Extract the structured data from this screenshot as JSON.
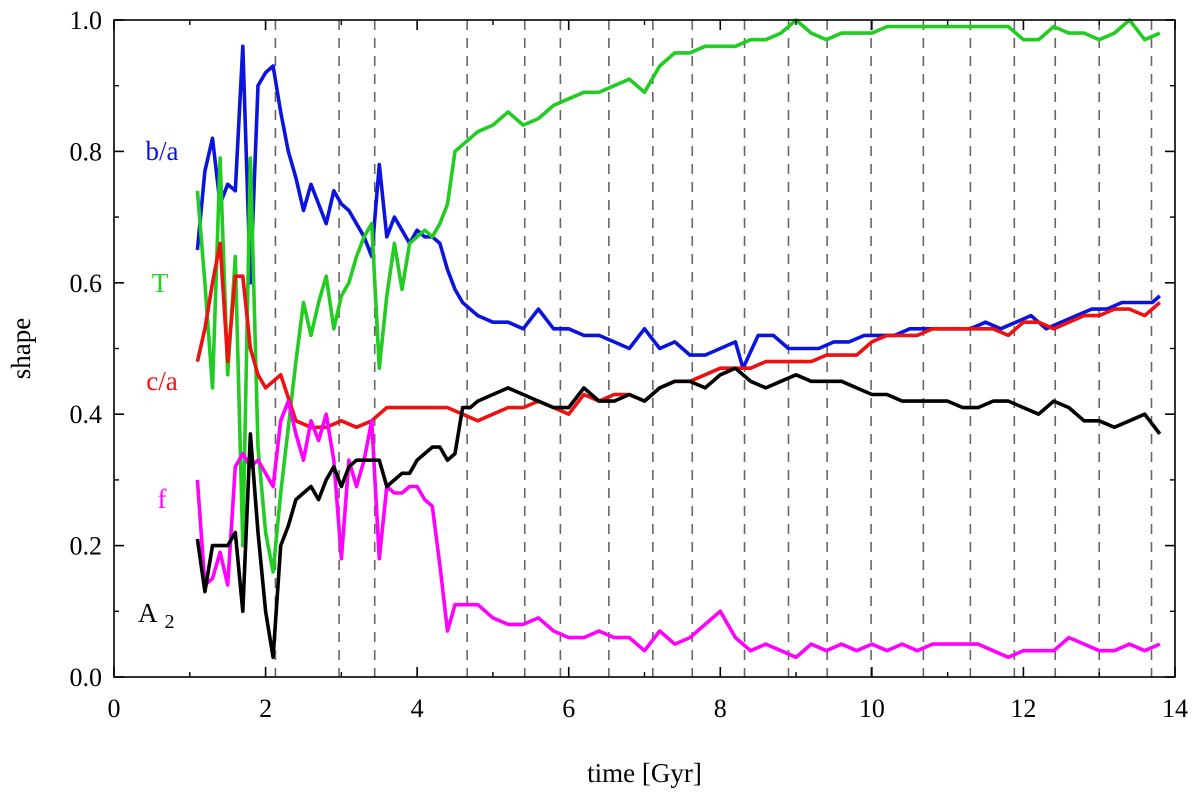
{
  "chart_data": {
    "type": "line",
    "xlabel": "time [Gyr]",
    "ylabel": "shape",
    "xlim": [
      0,
      14
    ],
    "ylim": [
      0,
      1
    ],
    "xticks": [
      0,
      2,
      4,
      6,
      8,
      10,
      12,
      14
    ],
    "xtick_labels": [
      "0",
      "2",
      "4",
      "6",
      "8",
      "10",
      "12",
      "14"
    ],
    "yticks": [
      0,
      0.2,
      0.4,
      0.6,
      0.8,
      1.0
    ],
    "ytick_labels": [
      "0.0",
      "0.2",
      "0.4",
      "0.6",
      "0.8",
      "1.0"
    ],
    "grid": false,
    "vlines": [
      2.13,
      2.97,
      3.44,
      4.66,
      5.42,
      5.89,
      6.53,
      7.11,
      7.63,
      8.32,
      8.9,
      9.41,
      9.99,
      10.68,
      11.3,
      11.88,
      12.42,
      13.0,
      13.69
    ],
    "series": [
      {
        "name": "b/a",
        "label_main": "b/a",
        "label_sub": "",
        "color": "#0a14dc",
        "x": [
          1.1,
          1.2,
          1.3,
          1.4,
          1.5,
          1.6,
          1.7,
          1.8,
          1.9,
          2.0,
          2.1,
          2.2,
          2.3,
          2.4,
          2.5,
          2.6,
          2.7,
          2.8,
          2.9,
          3.0,
          3.1,
          3.2,
          3.3,
          3.4,
          3.5,
          3.6,
          3.7,
          3.8,
          3.9,
          4.0,
          4.1,
          4.2,
          4.3,
          4.4,
          4.5,
          4.6,
          4.7,
          4.8,
          5.0,
          5.2,
          5.4,
          5.6,
          5.8,
          6.0,
          6.2,
          6.4,
          6.6,
          6.8,
          7.0,
          7.2,
          7.4,
          7.6,
          7.8,
          8.0,
          8.2,
          8.3,
          8.5,
          8.7,
          8.9,
          9.1,
          9.3,
          9.5,
          9.7,
          9.9,
          10.1,
          10.3,
          10.5,
          10.7,
          10.9,
          11.1,
          11.3,
          11.5,
          11.7,
          11.9,
          12.1,
          12.3,
          12.5,
          12.7,
          12.9,
          13.1,
          13.3,
          13.5,
          13.7,
          13.8
        ],
        "y": [
          0.65,
          0.77,
          0.82,
          0.72,
          0.75,
          0.74,
          0.96,
          0.6,
          0.9,
          0.92,
          0.93,
          0.86,
          0.8,
          0.76,
          0.71,
          0.75,
          0.72,
          0.69,
          0.74,
          0.72,
          0.71,
          0.69,
          0.67,
          0.64,
          0.78,
          0.67,
          0.7,
          0.68,
          0.66,
          0.68,
          0.67,
          0.67,
          0.66,
          0.62,
          0.59,
          0.57,
          0.56,
          0.55,
          0.54,
          0.54,
          0.53,
          0.56,
          0.53,
          0.53,
          0.52,
          0.52,
          0.51,
          0.5,
          0.53,
          0.5,
          0.51,
          0.49,
          0.49,
          0.5,
          0.51,
          0.47,
          0.52,
          0.52,
          0.5,
          0.5,
          0.5,
          0.51,
          0.51,
          0.52,
          0.52,
          0.52,
          0.53,
          0.53,
          0.53,
          0.53,
          0.53,
          0.54,
          0.53,
          0.54,
          0.55,
          0.53,
          0.54,
          0.55,
          0.56,
          0.56,
          0.57,
          0.57,
          0.57,
          0.58
        ]
      },
      {
        "name": "T",
        "label_main": "T",
        "label_sub": "",
        "color": "#22cc22",
        "x": [
          1.1,
          1.2,
          1.3,
          1.4,
          1.5,
          1.6,
          1.7,
          1.8,
          1.9,
          2.0,
          2.1,
          2.2,
          2.3,
          2.4,
          2.5,
          2.6,
          2.7,
          2.8,
          2.9,
          3.0,
          3.1,
          3.2,
          3.3,
          3.4,
          3.5,
          3.6,
          3.7,
          3.8,
          3.9,
          4.0,
          4.1,
          4.2,
          4.3,
          4.4,
          4.5,
          4.6,
          4.7,
          4.8,
          5.0,
          5.2,
          5.4,
          5.6,
          5.8,
          6.0,
          6.2,
          6.4,
          6.6,
          6.8,
          7.0,
          7.2,
          7.4,
          7.6,
          7.8,
          8.0,
          8.2,
          8.4,
          8.6,
          8.8,
          9.0,
          9.2,
          9.4,
          9.6,
          9.8,
          10.0,
          10.2,
          10.4,
          10.6,
          10.8,
          11.0,
          11.2,
          11.4,
          11.6,
          11.8,
          12.0,
          12.2,
          12.4,
          12.6,
          12.8,
          13.0,
          13.2,
          13.4,
          13.6,
          13.8
        ],
        "y": [
          0.74,
          0.6,
          0.44,
          0.79,
          0.46,
          0.64,
          0.2,
          0.79,
          0.35,
          0.22,
          0.16,
          0.28,
          0.38,
          0.48,
          0.57,
          0.52,
          0.57,
          0.61,
          0.53,
          0.58,
          0.6,
          0.64,
          0.67,
          0.69,
          0.47,
          0.58,
          0.66,
          0.59,
          0.66,
          0.67,
          0.68,
          0.67,
          0.69,
          0.72,
          0.8,
          0.81,
          0.82,
          0.83,
          0.84,
          0.86,
          0.84,
          0.85,
          0.87,
          0.88,
          0.89,
          0.89,
          0.9,
          0.91,
          0.89,
          0.93,
          0.95,
          0.95,
          0.96,
          0.96,
          0.96,
          0.97,
          0.97,
          0.98,
          1.0,
          0.98,
          0.97,
          0.98,
          0.98,
          0.98,
          0.99,
          0.99,
          0.99,
          0.99,
          0.99,
          0.99,
          0.99,
          0.99,
          0.99,
          0.97,
          0.97,
          0.99,
          0.98,
          0.98,
          0.97,
          0.98,
          1.0,
          0.97,
          0.98
        ]
      },
      {
        "name": "c/a",
        "label_main": "c/a",
        "label_sub": "",
        "color": "#ee1111",
        "x": [
          1.1,
          1.2,
          1.3,
          1.4,
          1.5,
          1.6,
          1.7,
          1.8,
          1.9,
          2.0,
          2.2,
          2.4,
          2.6,
          2.8,
          3.0,
          3.2,
          3.4,
          3.6,
          3.8,
          4.0,
          4.2,
          4.4,
          4.6,
          4.8,
          5.0,
          5.2,
          5.4,
          5.6,
          5.8,
          6.0,
          6.2,
          6.4,
          6.6,
          6.8,
          7.0,
          7.2,
          7.4,
          7.6,
          7.8,
          8.0,
          8.2,
          8.4,
          8.6,
          8.8,
          9.0,
          9.2,
          9.4,
          9.6,
          9.8,
          10.0,
          10.2,
          10.4,
          10.6,
          10.8,
          11.0,
          11.2,
          11.4,
          11.6,
          11.8,
          12.0,
          12.2,
          12.4,
          12.6,
          12.8,
          13.0,
          13.2,
          13.4,
          13.6,
          13.8
        ],
        "y": [
          0.48,
          0.53,
          0.6,
          0.66,
          0.48,
          0.61,
          0.61,
          0.5,
          0.46,
          0.44,
          0.46,
          0.39,
          0.38,
          0.38,
          0.39,
          0.38,
          0.39,
          0.41,
          0.41,
          0.41,
          0.41,
          0.41,
          0.4,
          0.39,
          0.4,
          0.41,
          0.41,
          0.42,
          0.41,
          0.4,
          0.43,
          0.42,
          0.43,
          0.43,
          0.42,
          0.44,
          0.45,
          0.45,
          0.46,
          0.47,
          0.47,
          0.47,
          0.48,
          0.48,
          0.48,
          0.48,
          0.49,
          0.49,
          0.49,
          0.51,
          0.52,
          0.52,
          0.52,
          0.53,
          0.53,
          0.53,
          0.53,
          0.53,
          0.52,
          0.54,
          0.54,
          0.53,
          0.54,
          0.55,
          0.55,
          0.56,
          0.56,
          0.55,
          0.57
        ]
      },
      {
        "name": "f",
        "label_main": "f",
        "label_sub": "",
        "color": "#ff00ff",
        "x": [
          1.1,
          1.2,
          1.3,
          1.4,
          1.5,
          1.6,
          1.7,
          1.8,
          1.9,
          2.0,
          2.1,
          2.2,
          2.3,
          2.4,
          2.5,
          2.6,
          2.7,
          2.8,
          2.9,
          3.0,
          3.1,
          3.2,
          3.3,
          3.4,
          3.5,
          3.6,
          3.7,
          3.8,
          3.9,
          4.0,
          4.1,
          4.2,
          4.3,
          4.4,
          4.5,
          4.6,
          4.7,
          4.8,
          5.0,
          5.2,
          5.4,
          5.6,
          5.8,
          6.0,
          6.2,
          6.4,
          6.6,
          6.8,
          7.0,
          7.2,
          7.4,
          7.6,
          7.8,
          8.0,
          8.2,
          8.4,
          8.6,
          8.8,
          9.0,
          9.2,
          9.4,
          9.6,
          9.8,
          10.0,
          10.2,
          10.4,
          10.6,
          10.8,
          11.0,
          11.2,
          11.4,
          11.6,
          11.8,
          12.0,
          12.2,
          12.4,
          12.6,
          12.8,
          13.0,
          13.2,
          13.4,
          13.6,
          13.8
        ],
        "y": [
          0.3,
          0.14,
          0.15,
          0.19,
          0.14,
          0.32,
          0.34,
          0.32,
          0.33,
          0.31,
          0.29,
          0.39,
          0.42,
          0.37,
          0.33,
          0.39,
          0.36,
          0.4,
          0.33,
          0.18,
          0.33,
          0.29,
          0.33,
          0.39,
          0.18,
          0.29,
          0.28,
          0.28,
          0.29,
          0.29,
          0.27,
          0.26,
          0.17,
          0.07,
          0.11,
          0.11,
          0.11,
          0.11,
          0.09,
          0.08,
          0.08,
          0.09,
          0.07,
          0.06,
          0.06,
          0.07,
          0.06,
          0.06,
          0.04,
          0.07,
          0.05,
          0.06,
          0.08,
          0.1,
          0.06,
          0.04,
          0.05,
          0.04,
          0.03,
          0.05,
          0.04,
          0.05,
          0.04,
          0.05,
          0.04,
          0.05,
          0.04,
          0.05,
          0.05,
          0.05,
          0.05,
          0.04,
          0.03,
          0.04,
          0.04,
          0.04,
          0.06,
          0.05,
          0.04,
          0.04,
          0.05,
          0.04,
          0.05
        ]
      },
      {
        "name": "A 2",
        "label_main": "A",
        "label_sub": "2",
        "color": "#000000",
        "x": [
          1.1,
          1.2,
          1.3,
          1.4,
          1.5,
          1.6,
          1.7,
          1.8,
          1.9,
          2.0,
          2.1,
          2.2,
          2.3,
          2.4,
          2.5,
          2.6,
          2.7,
          2.8,
          2.9,
          3.0,
          3.1,
          3.2,
          3.3,
          3.4,
          3.5,
          3.6,
          3.7,
          3.8,
          3.9,
          4.0,
          4.1,
          4.2,
          4.3,
          4.4,
          4.5,
          4.6,
          4.7,
          4.8,
          5.0,
          5.2,
          5.4,
          5.6,
          5.8,
          6.0,
          6.2,
          6.4,
          6.6,
          6.8,
          7.0,
          7.2,
          7.4,
          7.6,
          7.8,
          8.0,
          8.2,
          8.4,
          8.6,
          8.8,
          9.0,
          9.2,
          9.4,
          9.6,
          9.8,
          10.0,
          10.2,
          10.4,
          10.6,
          10.8,
          11.0,
          11.2,
          11.4,
          11.6,
          11.8,
          12.0,
          12.2,
          12.4,
          12.6,
          12.8,
          13.0,
          13.2,
          13.4,
          13.6,
          13.8
        ],
        "y": [
          0.21,
          0.13,
          0.2,
          0.2,
          0.2,
          0.22,
          0.1,
          0.37,
          0.22,
          0.1,
          0.03,
          0.2,
          0.23,
          0.27,
          0.28,
          0.29,
          0.27,
          0.3,
          0.32,
          0.29,
          0.32,
          0.33,
          0.33,
          0.33,
          0.33,
          0.29,
          0.3,
          0.31,
          0.31,
          0.33,
          0.34,
          0.35,
          0.35,
          0.33,
          0.34,
          0.41,
          0.41,
          0.42,
          0.43,
          0.44,
          0.43,
          0.42,
          0.41,
          0.41,
          0.44,
          0.42,
          0.42,
          0.43,
          0.42,
          0.44,
          0.45,
          0.45,
          0.44,
          0.46,
          0.47,
          0.45,
          0.44,
          0.45,
          0.46,
          0.45,
          0.45,
          0.45,
          0.44,
          0.43,
          0.43,
          0.42,
          0.42,
          0.42,
          0.42,
          0.41,
          0.41,
          0.42,
          0.42,
          0.41,
          0.4,
          0.42,
          0.41,
          0.39,
          0.39,
          0.38,
          0.39,
          0.4,
          0.37
        ]
      }
    ]
  }
}
